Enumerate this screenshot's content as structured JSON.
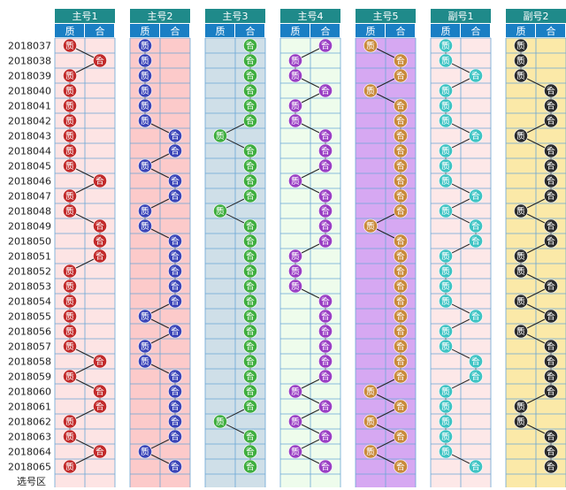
{
  "chart_data": {
    "type": "table",
    "periods": [
      "2018037",
      "2018038",
      "2018039",
      "2018040",
      "2018041",
      "2018042",
      "2018043",
      "2018044",
      "2018045",
      "2018046",
      "2018047",
      "2018048",
      "2018049",
      "2018050",
      "2018051",
      "2018052",
      "2018053",
      "2018054",
      "2018055",
      "2018056",
      "2018057",
      "2018058",
      "2018059",
      "2018060",
      "2018061",
      "2018062",
      "2018063",
      "2018064",
      "2018065"
    ],
    "footer_label": "选号区",
    "sub_labels": [
      "质",
      "合"
    ],
    "series": [
      {
        "name": "主号1",
        "values": [
          "质",
          "合",
          "质",
          "质",
          "质",
          "质",
          "质",
          "质",
          "质",
          "合",
          "质",
          "质",
          "合",
          "合",
          "合",
          "质",
          "质",
          "质",
          "质",
          "质",
          "质",
          "合",
          "质",
          "合",
          "合",
          "质",
          "质",
          "合",
          "质"
        ]
      },
      {
        "name": "主号2",
        "values": [
          "质",
          "质",
          "质",
          "质",
          "质",
          "质",
          "合",
          "合",
          "质",
          "合",
          "合",
          "质",
          "质",
          "合",
          "合",
          "合",
          "合",
          "合",
          "质",
          "合",
          "质",
          "质",
          "合",
          "合",
          "合",
          "合",
          "合",
          "质",
          "合"
        ]
      },
      {
        "name": "主号3",
        "values": [
          "合",
          "合",
          "合",
          "合",
          "合",
          "合",
          "质",
          "合",
          "合",
          "合",
          "合",
          "质",
          "合",
          "合",
          "合",
          "合",
          "合",
          "合",
          "合",
          "合",
          "合",
          "合",
          "合",
          "合",
          "合",
          "质",
          "合",
          "合",
          "合"
        ]
      },
      {
        "name": "主号4",
        "values": [
          "合",
          "质",
          "质",
          "合",
          "质",
          "质",
          "合",
          "合",
          "合",
          "质",
          "合",
          "合",
          "合",
          "合",
          "质",
          "质",
          "质",
          "合",
          "合",
          "合",
          "合",
          "合",
          "合",
          "质",
          "合",
          "质",
          "合",
          "质",
          "合"
        ]
      },
      {
        "name": "主号5",
        "values": [
          "质",
          "合",
          "合",
          "质",
          "合",
          "合",
          "合",
          "合",
          "合",
          "合",
          "合",
          "合",
          "质",
          "合",
          "合",
          "合",
          "合",
          "合",
          "合",
          "合",
          "合",
          "合",
          "合",
          "质",
          "合",
          "质",
          "合",
          "质",
          "合"
        ]
      },
      {
        "name": "副号1",
        "values": [
          "质",
          "质",
          "合",
          "质",
          "质",
          "质",
          "合",
          "质",
          "质",
          "质",
          "合",
          "质",
          "合",
          "合",
          "质",
          "质",
          "质",
          "质",
          "合",
          "质",
          "质",
          "合",
          "合",
          "质",
          "质",
          "质",
          "质",
          "质",
          "合"
        ]
      },
      {
        "name": "副号2",
        "values": [
          "质",
          "质",
          "质",
          "合",
          "合",
          "合",
          "质",
          "合",
          "合",
          "合",
          "合",
          "质",
          "合",
          "合",
          "质",
          "质",
          "合",
          "质",
          "合",
          "质",
          "合",
          "合",
          "合",
          "合",
          "质",
          "质",
          "合",
          "合",
          "合"
        ]
      }
    ],
    "colors": {
      "header_bg": [
        "#1f8a8a",
        "#1f8a8a",
        "#1f8a8a",
        "#1f8a8a",
        "#1f8a8a",
        "#1f8a8a",
        "#1f8a8a"
      ],
      "sub_header_bg": "#1a7fc4",
      "column_bg": [
        "#fde4e4",
        "#fccaca",
        "#cfdfe8",
        "#eefcec",
        "#d6a8f2",
        "#fde8e8",
        "#fbe9a8"
      ],
      "ball": [
        "#c22a2a",
        "#3a44b8",
        "#3fae3f",
        "#9a3fc4",
        "#c98a3a",
        "#3fc4c4",
        "#2b2b2b"
      ],
      "grid_line": "#6aa6d6",
      "connector": "#222222"
    }
  }
}
